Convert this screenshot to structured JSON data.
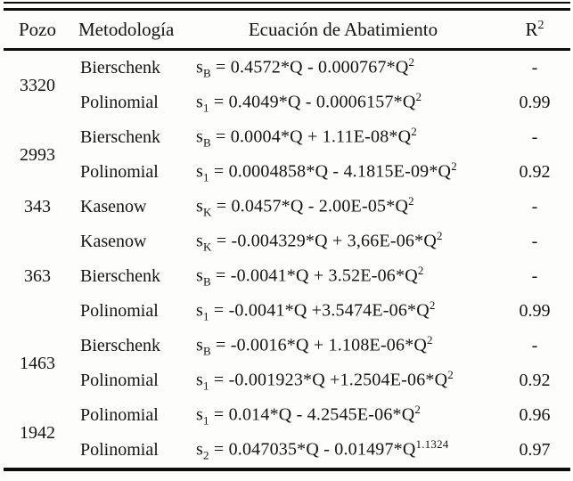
{
  "table": {
    "headers": {
      "pozo": "Pozo",
      "metodologia": "Metodología",
      "ecuacion": "Ecuación de Abatimiento",
      "r2_base": "R",
      "r2_sup": "2"
    },
    "text_color": "#141414",
    "rule_color": "#0d0d0d",
    "background_color": "#fdfdfc",
    "groups": [
      {
        "pozo": "3320",
        "rows": [
          {
            "metodologia": "Bierschenk",
            "eq": {
              "var": "s",
              "sub": "B",
              "body": " = 0.4572*Q - 0.000767*Q",
              "sup": "2"
            },
            "r2": "-"
          },
          {
            "metodologia": "Polinomial",
            "eq": {
              "var": "s",
              "sub": "1",
              "body": " = 0.4049*Q - 0.0006157*Q",
              "sup": "2"
            },
            "r2": "0.99"
          }
        ]
      },
      {
        "pozo": "2993",
        "rows": [
          {
            "metodologia": "Bierschenk",
            "eq": {
              "var": "s",
              "sub": "B",
              "body": " = 0.0004*Q + 1.11E-08*Q",
              "sup": "2"
            },
            "r2": "-"
          },
          {
            "metodologia": "Polinomial",
            "eq": {
              "var": "s",
              "sub": "1",
              "body": " = 0.0004858*Q - 4.1815E-09*Q",
              "sup": "2"
            },
            "r2": "0.92"
          }
        ]
      },
      {
        "pozo": "343",
        "rows": [
          {
            "metodologia": "Kasenow",
            "eq": {
              "var": "s",
              "sub": "K",
              "body": " = 0.0457*Q - 2.00E-05*Q",
              "sup": "2"
            },
            "r2": "-"
          }
        ]
      },
      {
        "pozo": "363",
        "rows": [
          {
            "metodologia": "Kasenow",
            "eq": {
              "var": "s",
              "sub": "K",
              "body": " = -0.004329*Q + 3,66E-06*Q",
              "sup": "2"
            },
            "r2": "-"
          },
          {
            "metodologia": "Bierschenk",
            "eq": {
              "var": "s",
              "sub": "B",
              "body": " = -0.0041*Q + 3.52E-06*Q",
              "sup": "2"
            },
            "r2": "-"
          },
          {
            "metodologia": "Polinomial",
            "eq": {
              "var": "s",
              "sub": "1",
              "body": " = -0.0041*Q +3.5474E-06*Q",
              "sup": "2"
            },
            "r2": "0.99"
          }
        ]
      },
      {
        "pozo": "1463",
        "rows": [
          {
            "metodologia": "Bierschenk",
            "eq": {
              "var": "s",
              "sub": "B",
              "body": " = -0.0016*Q + 1.108E-06*Q",
              "sup": "2"
            },
            "r2": "-"
          },
          {
            "metodologia": "Polinomial",
            "eq": {
              "var": "s",
              "sub": "1",
              "body": " = -0.001923*Q +1.2504E-06*Q",
              "sup": "2"
            },
            "r2": "0.92"
          }
        ]
      },
      {
        "pozo": "1942",
        "rows": [
          {
            "metodologia": "Polinomial",
            "eq": {
              "var": "s",
              "sub": "1",
              "body": " = 0.014*Q - 4.2545E-06*Q",
              "sup": "2"
            },
            "r2": "0.96"
          },
          {
            "metodologia": "Polinomial",
            "eq": {
              "var": "s",
              "sub": "2",
              "body": " = 0.047035*Q - 0.01497*Q",
              "sup": "1.1324"
            },
            "r2": "0.97"
          }
        ]
      }
    ]
  }
}
